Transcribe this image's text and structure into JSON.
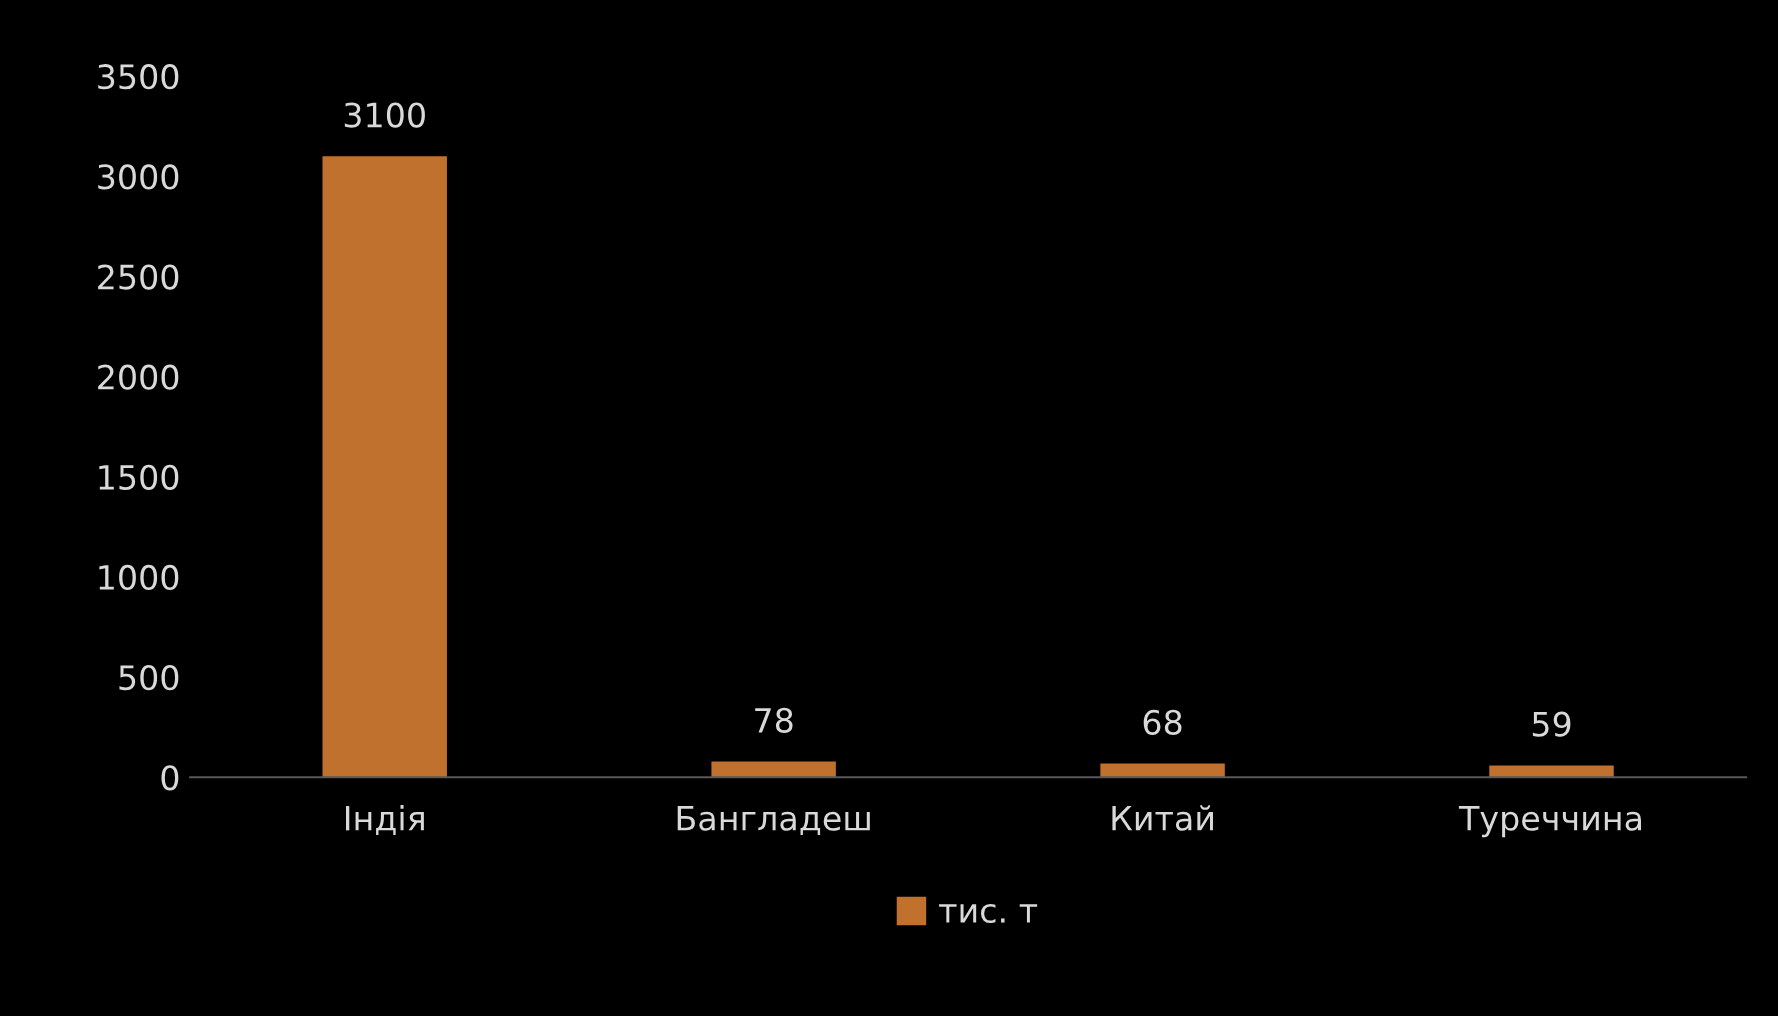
{
  "chart_data": {
    "type": "bar",
    "categories": [
      "Індія",
      "Бангладеш",
      "Китай",
      "Туреччина"
    ],
    "series": [
      {
        "name": "тис. т",
        "color": "#c0712e",
        "values": [
          3100,
          78,
          68,
          59
        ]
      }
    ],
    "ylim": [
      0,
      3500
    ],
    "yticks": [
      0,
      500,
      1000,
      1500,
      2000,
      2500,
      3000,
      3500
    ],
    "grid": false,
    "legend": "bottom",
    "data_labels": true
  }
}
